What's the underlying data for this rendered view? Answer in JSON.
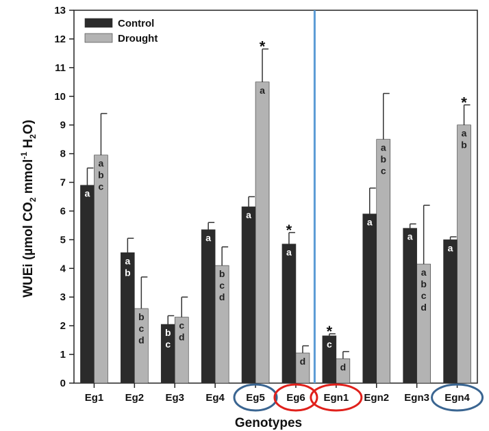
{
  "chart_data": {
    "type": "bar",
    "xlabel": "Genotypes",
    "ylabel_parts": {
      "a": "WUEi  (µmol CO",
      "sub1": "2",
      "b": " mmol",
      "sup": "-1",
      "c": " H",
      "sub2": "2",
      "d": "O)"
    },
    "ylim": [
      0,
      13
    ],
    "yticks": [
      "0",
      "1",
      "2",
      "3",
      "4",
      "5",
      "6",
      "7",
      "8",
      "9",
      "10",
      "11",
      "12",
      "13"
    ],
    "categories": [
      "Eg1",
      "Eg2",
      "Eg3",
      "Eg4",
      "Eg5",
      "Eg6",
      "Egn1",
      "Egn2",
      "Egn3",
      "Egn4"
    ],
    "series": [
      {
        "name": "Control",
        "color": "#2b2b2b",
        "values": [
          6.9,
          4.55,
          2.05,
          5.35,
          6.15,
          4.85,
          1.65,
          5.9,
          5.4,
          5.0
        ],
        "errors": [
          0.6,
          0.5,
          0.3,
          0.25,
          0.35,
          0.4,
          0.07,
          0.9,
          0.15,
          0.1
        ]
      },
      {
        "name": "Drought",
        "color": "#b3b3b3",
        "values": [
          7.95,
          2.6,
          2.3,
          4.1,
          10.5,
          1.05,
          0.85,
          8.5,
          4.15,
          9.0
        ],
        "errors": [
          1.45,
          1.1,
          0.7,
          0.65,
          1.15,
          0.25,
          0.25,
          1.6,
          2.05,
          0.7
        ]
      }
    ],
    "letters": {
      "Control": [
        "a",
        "a b",
        "b c",
        "a",
        "a",
        "a",
        "c",
        "a",
        "a",
        "a"
      ],
      "Drought": [
        "a b c",
        "b c d",
        "c d",
        "b c d",
        "a",
        "d",
        "d",
        "a b c",
        "a b c d",
        "a b"
      ]
    },
    "significance_marks": [
      {
        "category": "Eg5",
        "series": "Drought",
        "mark": "*"
      },
      {
        "category": "Eg6",
        "series": "Control",
        "mark": "*"
      },
      {
        "category": "Egn1",
        "series": "Control",
        "mark": "*"
      },
      {
        "category": "Egn4",
        "series": "Drought",
        "mark": "*"
      }
    ],
    "highlight_circles": [
      {
        "category": "Eg5",
        "color": "#3a6591"
      },
      {
        "category": "Eg6",
        "color": "#e0201b"
      },
      {
        "category": "Egn1",
        "color": "#e0201b"
      },
      {
        "category": "Egn4",
        "color": "#3a6591"
      }
    ],
    "divider": {
      "between": [
        "Eg6",
        "Egn1"
      ],
      "color": "#5b9bd5"
    },
    "legend_position": "top-left",
    "grid": false
  }
}
